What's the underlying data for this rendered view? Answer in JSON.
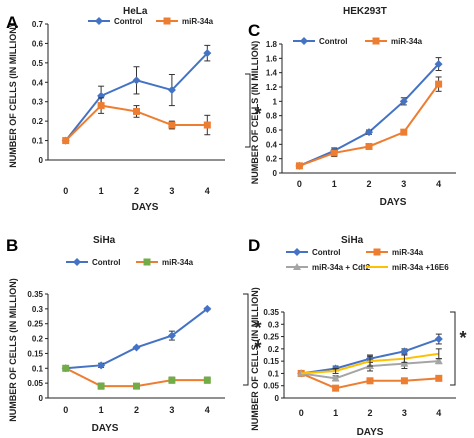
{
  "chart_data": [
    {
      "type": "line",
      "panel_label": "A",
      "title": "HeLa",
      "xlabel": "DAYS",
      "ylabel": "NUMBER OF CELLS (IN MILLION)",
      "x": [
        0,
        1,
        2,
        3,
        4
      ],
      "ylim": [
        0,
        0.7
      ],
      "yticks": [
        "0",
        "0.1",
        "0.2",
        "0.3",
        "0.4",
        "0.5",
        "0.6",
        "0.7"
      ],
      "series": [
        {
          "name": "Control",
          "color": "#4472C4",
          "marker": "diamond",
          "values": [
            0.1,
            0.33,
            0.41,
            0.36,
            0.55
          ],
          "errors": [
            0,
            0.05,
            0.07,
            0.08,
            0.04
          ]
        },
        {
          "name": "miR-34a",
          "color": "#ED7D31",
          "marker": "square",
          "values": [
            0.1,
            0.28,
            0.25,
            0.18,
            0.18
          ],
          "errors": [
            0,
            0.04,
            0.03,
            0.02,
            0.05
          ]
        }
      ],
      "significance": "*",
      "legend": "top"
    },
    {
      "type": "line",
      "panel_label": "C",
      "title": "HEK293T",
      "xlabel": "DAYS",
      "ylabel": "NUMBER OF CELLS (IN MILLION)",
      "x": [
        0,
        1,
        2,
        3,
        4
      ],
      "ylim": [
        0,
        1.8
      ],
      "yticks": [
        "0",
        "0.2",
        "0.4",
        "0.6",
        "0.8",
        "1",
        "1.2",
        "1.4",
        "1.6",
        "1.8"
      ],
      "series": [
        {
          "name": "Control",
          "color": "#4472C4",
          "marker": "diamond",
          "values": [
            0.1,
            0.31,
            0.57,
            1.0,
            1.52
          ],
          "errors": [
            0,
            0.04,
            0.03,
            0.05,
            0.09
          ]
        },
        {
          "name": "miR-34a",
          "color": "#ED7D31",
          "marker": "square",
          "values": [
            0.1,
            0.28,
            0.37,
            0.57,
            1.24
          ],
          "errors": [
            0,
            0.05,
            0.02,
            0.03,
            0.1
          ]
        }
      ],
      "significance": "",
      "legend": "top"
    },
    {
      "type": "line",
      "panel_label": "B",
      "title": "SiHa",
      "xlabel": "DAYS",
      "ylabel": "NUMBER OF CELLS (IN MILLION)",
      "x": [
        0,
        1,
        2,
        3,
        4
      ],
      "ylim": [
        0,
        0.35
      ],
      "yticks": [
        "0",
        "0.05",
        "0.1",
        "0.15",
        "0.2",
        "0.25",
        "0.3",
        "0.35"
      ],
      "series": [
        {
          "name": "Control",
          "color": "#4472C4",
          "marker": "diamond",
          "values": [
            0.1,
            0.11,
            0.17,
            0.21,
            0.3
          ],
          "errors": [
            0,
            0.007,
            0.003,
            0.015,
            0.003
          ]
        },
        {
          "name": "miR-34a",
          "color": "#ED7D31",
          "marker": "square",
          "markerFill": "#70AD47",
          "values": [
            0.1,
            0.04,
            0.04,
            0.06,
            0.06
          ],
          "errors": [
            0,
            0.01,
            0.003,
            0.01,
            0.01
          ]
        }
      ],
      "significance": "**",
      "legend": "top"
    },
    {
      "type": "line",
      "panel_label": "D",
      "title": "SiHa",
      "xlabel": "DAYS",
      "ylabel": "NUMBER OF CELLS (IN MILLION)",
      "x": [
        0,
        1,
        2,
        3,
        4
      ],
      "ylim": [
        0,
        0.35
      ],
      "yticks": [
        "0",
        "0.05",
        "0.1",
        "0.15",
        "0.2",
        "0.25",
        "0.3",
        "0.35"
      ],
      "series": [
        {
          "name": "Control",
          "color": "#4472C4",
          "marker": "diamond",
          "values": [
            0.1,
            0.12,
            0.16,
            0.19,
            0.24
          ],
          "errors": [
            0,
            0.01,
            0.015,
            0.01,
            0.02
          ]
        },
        {
          "name": "miR-34a",
          "color": "#ED7D31",
          "marker": "square",
          "values": [
            0.1,
            0.04,
            0.07,
            0.07,
            0.08
          ],
          "errors": [
            0,
            0.01,
            0.01,
            0.01,
            0.01
          ]
        },
        {
          "name": "miR-34a + Cdt2",
          "color": "#A5A5A5",
          "marker": "triangle",
          "values": [
            0.1,
            0.08,
            0.13,
            0.14,
            0.15
          ],
          "errors": [
            0,
            0.01,
            0.02,
            0.02,
            0.01
          ]
        },
        {
          "name": "miR-34a +16E6",
          "color": "#FFC000",
          "marker": "none",
          "values": [
            0.1,
            0.11,
            0.15,
            0.16,
            0.18
          ],
          "errors": [
            0,
            0.01,
            0.02,
            0.015,
            0.02
          ]
        }
      ],
      "significance": "*",
      "legend": "top"
    }
  ]
}
